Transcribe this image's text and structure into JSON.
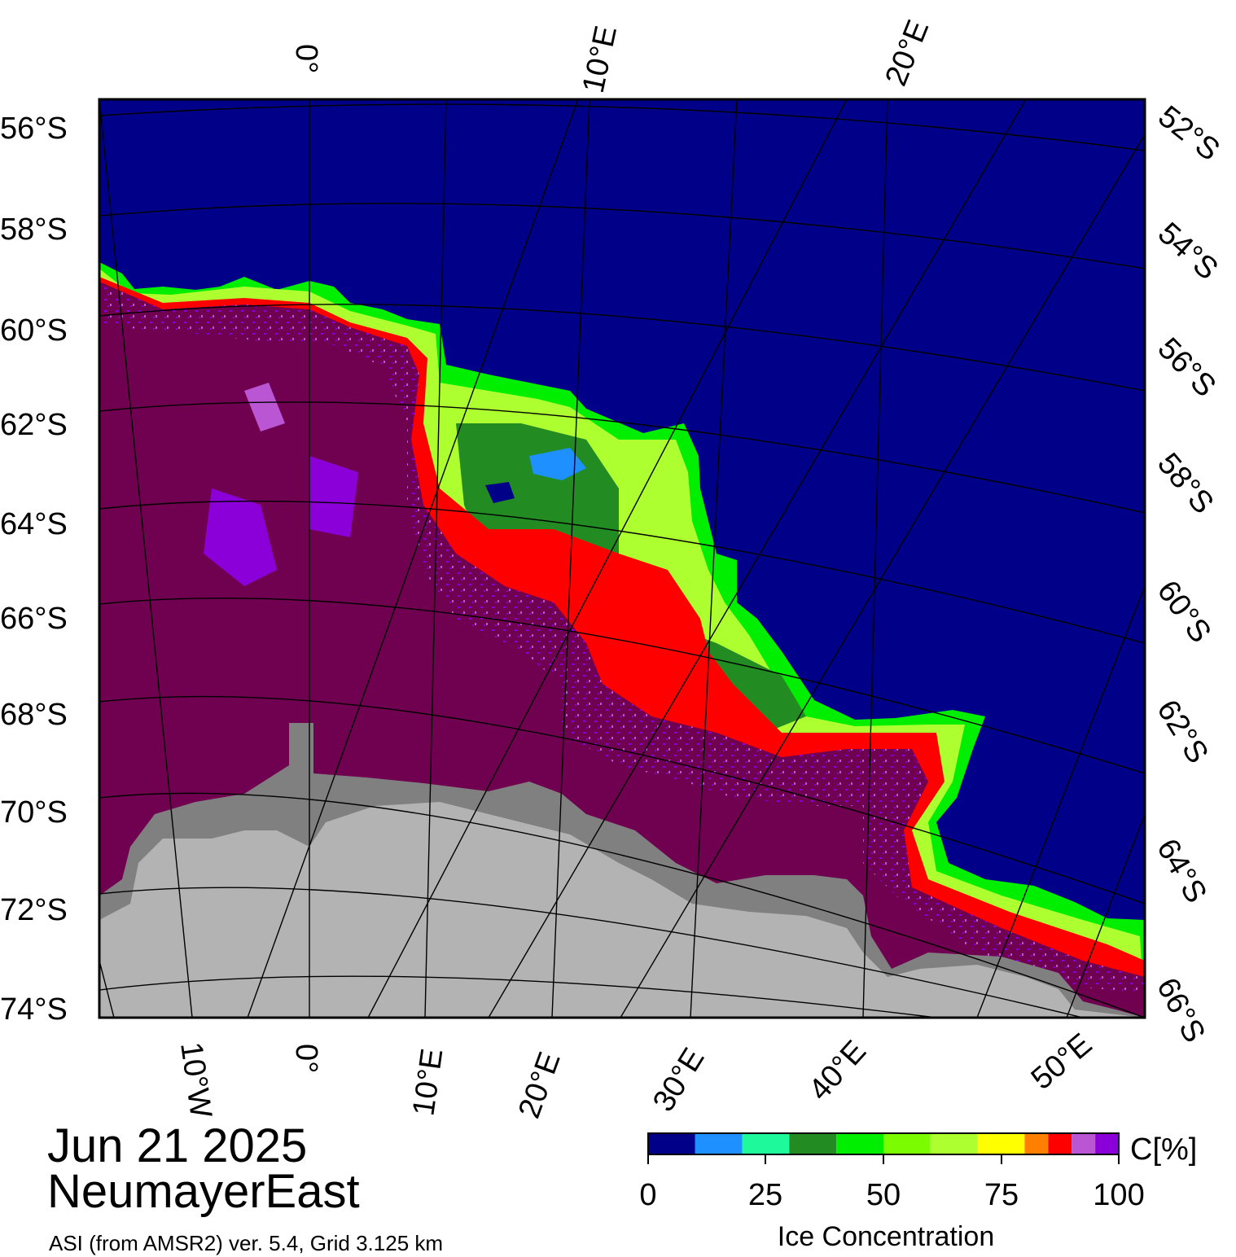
{
  "date": "Jun 21 2025",
  "region": "NeumayerEast",
  "source": "ASI (from AMSR2) ver. 5.4,  Grid 3.125 km",
  "colors": {
    "open_water": "#000088",
    "land": "#b3b3b3",
    "ice_shelf": "#808080",
    "ice_high": "#700050"
  },
  "graticule": {
    "top_labels": [
      "0°",
      "10°E",
      "20°E"
    ],
    "bottom_labels": [
      "10°W",
      "0°",
      "10°E",
      "20°E",
      "30°E",
      "40°E",
      "50°E"
    ],
    "left_labels": [
      "56°S",
      "58°S",
      "60°S",
      "62°S",
      "64°S",
      "66°S",
      "68°S",
      "70°S",
      "72°S",
      "74°S"
    ],
    "right_labels": [
      "52°S",
      "54°S",
      "56°S",
      "58°S",
      "60°S",
      "62°S",
      "64°S",
      "66°S"
    ]
  },
  "colorbar": {
    "title": "Ice Concentration",
    "unit": "C[%]",
    "ticks": [
      "0",
      "25",
      "50",
      "75",
      "100"
    ],
    "colors": [
      "#000088",
      "#1e90ff",
      "#1efa9b",
      "#228b22",
      "#00ee00",
      "#7cfc00",
      "#adff2f",
      "#ffff00",
      "#ff8000",
      "#ff0000",
      "#ba55d3",
      "#8b00d8"
    ]
  }
}
